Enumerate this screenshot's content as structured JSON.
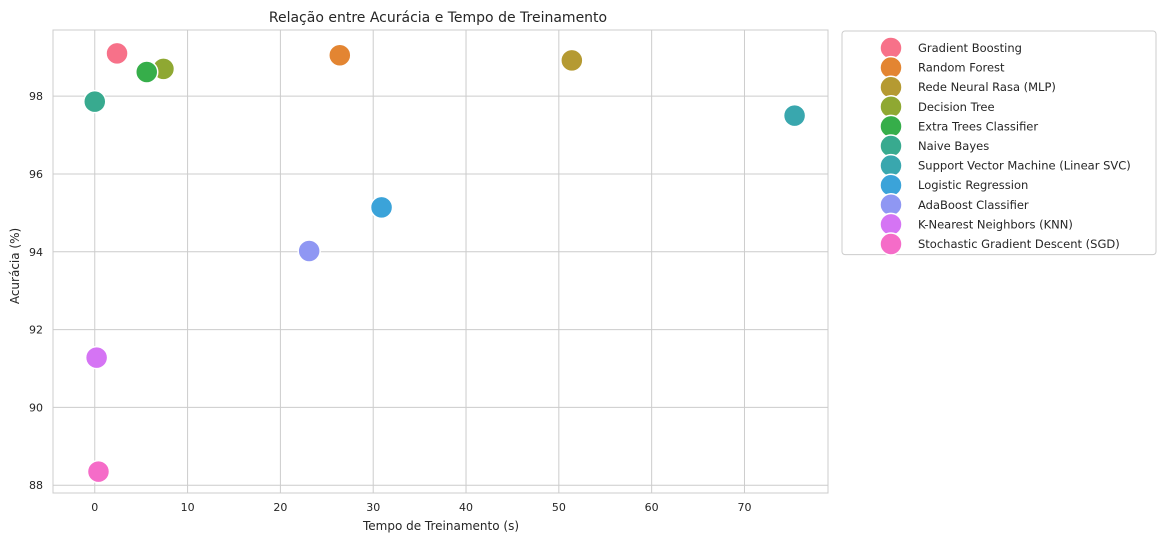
{
  "chart_data": {
    "type": "scatter",
    "title": "Relação entre Acurácia e Tempo de Treinamento",
    "xlabel": "Tempo de Treinamento (s)",
    "ylabel": "Acurácia (%)",
    "xlim": [
      -4.5,
      79
    ],
    "ylim": [
      87.8,
      99.7
    ],
    "xticks": [
      0,
      10,
      20,
      30,
      40,
      50,
      60,
      70
    ],
    "yticks": [
      88,
      90,
      92,
      94,
      96,
      98
    ],
    "grid": true,
    "legend_position": "outside-right",
    "series": [
      {
        "name": "Gradient Boosting",
        "color": "#f77189",
        "x": 2.4,
        "y": 99.1
      },
      {
        "name": "Random Forest",
        "color": "#e38532",
        "x": 26.4,
        "y": 99.05
      },
      {
        "name": "Rede Neural Rasa (MLP)",
        "color": "#b59a32",
        "x": 51.4,
        "y": 98.92
      },
      {
        "name": "Decision Tree",
        "color": "#8fa832",
        "x": 7.4,
        "y": 98.7
      },
      {
        "name": "Extra Trees Classifier",
        "color": "#36ae4a",
        "x": 5.6,
        "y": 98.62
      },
      {
        "name": "Naive Bayes",
        "color": "#38aa8f",
        "x": 0.0,
        "y": 97.86
      },
      {
        "name": "Support Vector Machine (Linear SVC)",
        "color": "#39a7ae",
        "x": 75.4,
        "y": 97.5
      },
      {
        "name": "Logistic Regression",
        "color": "#3ba3d9",
        "x": 30.9,
        "y": 95.14
      },
      {
        "name": "AdaBoost Classifier",
        "color": "#8f97f3",
        "x": 23.1,
        "y": 94.02
      },
      {
        "name": "K-Nearest Neighbors (KNN)",
        "color": "#d574f4",
        "x": 0.2,
        "y": 91.28
      },
      {
        "name": "Stochastic Gradient Descent (SGD)",
        "color": "#f56cc8",
        "x": 0.4,
        "y": 88.35
      }
    ]
  }
}
